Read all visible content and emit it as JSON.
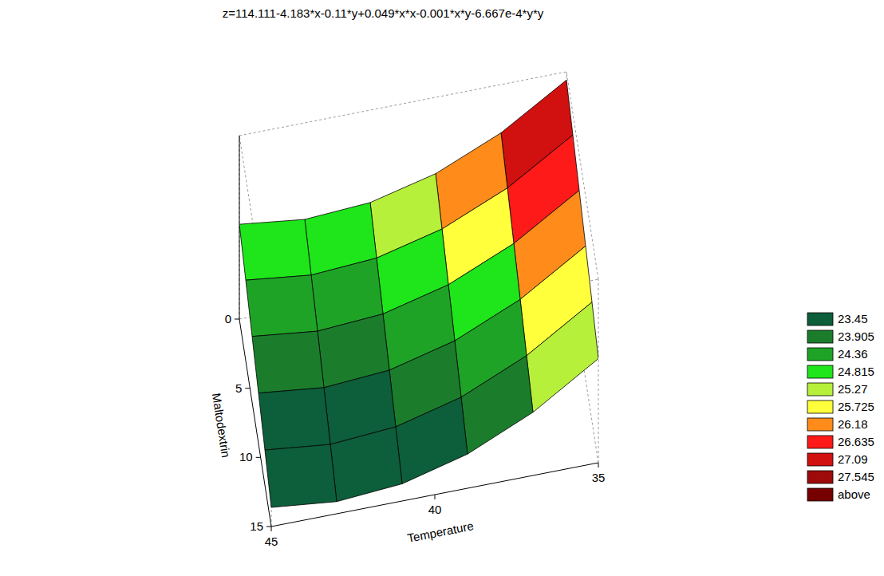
{
  "chart_data": {
    "type": "surface",
    "title": "z=114.111-4.183*x-0.11*y+0.049*x*x-0.001*x*y-6.667e-4*y*y",
    "x_label": "Temperature",
    "y_label": "Maltodextrin",
    "x": [
      35,
      37,
      39,
      41,
      43,
      45
    ],
    "y": [
      0,
      3,
      6,
      9,
      12,
      15
    ],
    "z": [
      [
        27.731,
        26.421,
        25.503,
        24.977,
        24.843,
        25.101
      ],
      [
        27.29,
        25.974,
        25.05,
        24.518,
        24.378,
        24.63
      ],
      [
        26.837,
        25.515,
        24.585,
        24.047,
        23.901,
        24.147
      ],
      [
        26.372,
        25.044,
        24.108,
        23.564,
        23.412,
        23.652
      ],
      [
        25.895,
        24.561,
        23.619,
        23.069,
        22.911,
        23.145
      ],
      [
        25.406,
        24.066,
        23.118,
        22.562,
        22.398,
        22.626
      ]
    ],
    "xlim": [
      45,
      35
    ],
    "xticks": [
      45,
      40,
      35
    ],
    "ylim": [
      15,
      0
    ],
    "yticks": [
      0,
      5,
      10,
      15
    ],
    "zlim": [
      22,
      28
    ],
    "legend": "right",
    "color_scale": [
      {
        "value": 23.45,
        "color": "#0d5e3a"
      },
      {
        "value": 23.905,
        "color": "#1b7d2c"
      },
      {
        "value": 24.36,
        "color": "#1fa326"
      },
      {
        "value": 24.815,
        "color": "#1ee61a"
      },
      {
        "value": 25.27,
        "color": "#b6f03a"
      },
      {
        "value": 25.725,
        "color": "#ffff3c"
      },
      {
        "value": 26.18,
        "color": "#ff8c1a"
      },
      {
        "value": 26.635,
        "color": "#ff1a1a"
      },
      {
        "value": 27.09,
        "color": "#d11010"
      },
      {
        "value": 27.545,
        "color": "#9e0a0a"
      },
      {
        "label": "above",
        "color": "#760000"
      }
    ]
  }
}
